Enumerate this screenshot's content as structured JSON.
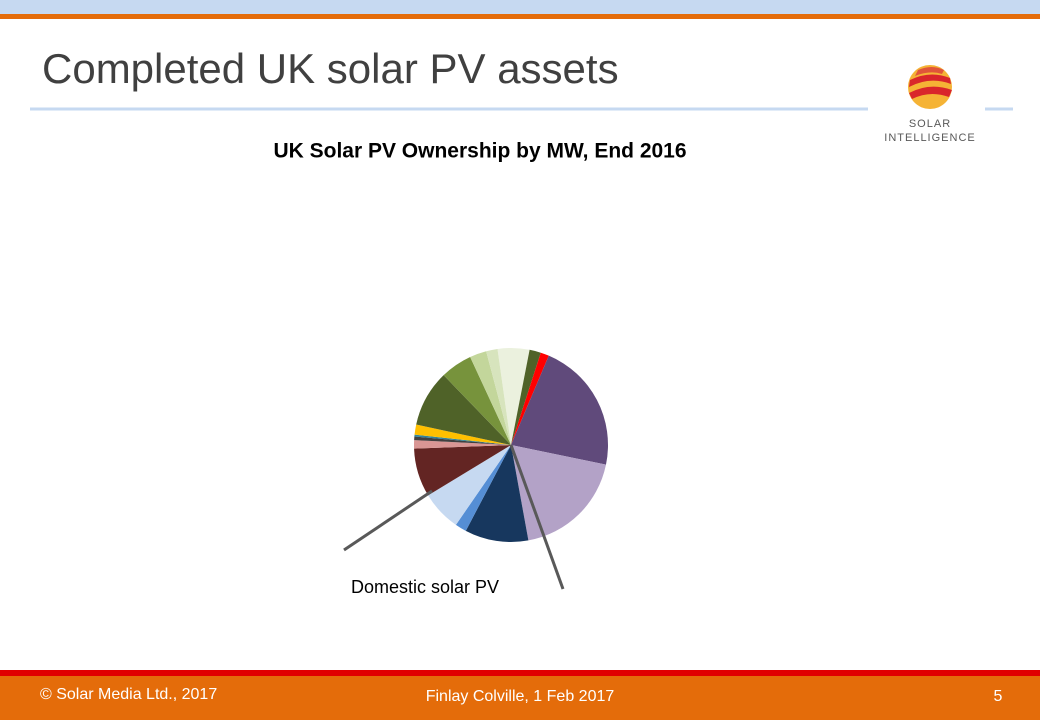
{
  "slide": {
    "title": "Completed UK solar PV assets",
    "logo_line1": "SOLAR",
    "logo_line2": "INTELLIGENCE",
    "footer_left": "© Solar Media Ltd., 2017",
    "footer_center": "Finlay Colville, 1 Feb 2017",
    "page_number": "5"
  },
  "chart_data": {
    "type": "pie",
    "title": "UK Solar PV Ownership by MW, End 2016",
    "annotation": "Domestic solar PV",
    "categories": [
      null,
      null,
      null,
      null,
      null,
      null,
      null,
      null,
      null,
      null,
      null,
      null,
      null,
      null,
      null,
      null,
      null
    ],
    "values": [
      5.3,
      1.9,
      1.4,
      21.9,
      18.9,
      10.6,
      1.9,
      6.7,
      8.1,
      1.4,
      0.6,
      0.3,
      1.7,
      9.4,
      5.3,
      2.8,
      1.9
    ],
    "colors": [
      "#ebf1de",
      "#4f6228",
      "#ff0000",
      "#604a7b",
      "#b3a2c7",
      "#17375e",
      "#558ed5",
      "#c6d9f1",
      "#632523",
      "#d99694",
      "#404040",
      "#31859c",
      "#ffc000",
      "#4f6228",
      "#77933c",
      "#c3d69b",
      "#d7e4bd"
    ]
  }
}
